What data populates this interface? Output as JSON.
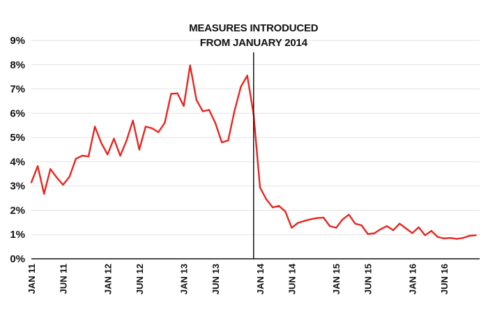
{
  "chart_data": {
    "type": "line",
    "title": "",
    "xlabel": "",
    "ylabel": "",
    "ylim": [
      0,
      9
    ],
    "y_ticks": [
      "0%",
      "1%",
      "2%",
      "3%",
      "4%",
      "5%",
      "6%",
      "7%",
      "8%",
      "9%"
    ],
    "x_ticks": [
      "JAN 11",
      "JUN 11",
      "JAN 12",
      "JUN 12",
      "JAN 13",
      "JUN 13",
      "JAN 14",
      "JUN 14",
      "JAN 15",
      "JUN 15",
      "JAN 16",
      "JUN 16"
    ],
    "grid": "horizontal",
    "series": [
      {
        "color": "#e8251f",
        "x": [
          "2011-01",
          "2011-02",
          "2011-03",
          "2011-04",
          "2011-05",
          "2011-06",
          "2011-07",
          "2011-08",
          "2011-09",
          "2011-10",
          "2011-11",
          "2011-12",
          "2012-01",
          "2012-02",
          "2012-03",
          "2012-04",
          "2012-05",
          "2012-06",
          "2012-07",
          "2012-08",
          "2012-09",
          "2012-10",
          "2012-11",
          "2012-12",
          "2013-01",
          "2013-02",
          "2013-03",
          "2013-04",
          "2013-05",
          "2013-06",
          "2013-07",
          "2013-08",
          "2013-09",
          "2013-10",
          "2013-11",
          "2013-12",
          "2014-01",
          "2014-02",
          "2014-03",
          "2014-04",
          "2014-05",
          "2014-06",
          "2014-07",
          "2014-08",
          "2014-09",
          "2014-10",
          "2014-11",
          "2014-12",
          "2015-01",
          "2015-02",
          "2015-03",
          "2015-04",
          "2015-05",
          "2015-06",
          "2015-07",
          "2015-08",
          "2015-09",
          "2015-10",
          "2015-11",
          "2015-12",
          "2016-01",
          "2016-02",
          "2016-03",
          "2016-04",
          "2016-05",
          "2016-06",
          "2016-07",
          "2016-08",
          "2016-09",
          "2016-10",
          "2016-11"
        ],
        "values": [
          3.15,
          3.82,
          2.68,
          3.7,
          3.35,
          3.05,
          3.38,
          4.12,
          4.25,
          4.22,
          5.45,
          4.78,
          4.3,
          4.95,
          4.25,
          4.88,
          5.7,
          4.5,
          5.45,
          5.38,
          5.22,
          5.6,
          6.8,
          6.82,
          6.3,
          7.97,
          6.55,
          6.08,
          6.14,
          5.58,
          4.8,
          4.88,
          6.1,
          7.1,
          7.55,
          5.95,
          2.95,
          2.45,
          2.12,
          2.18,
          1.95,
          1.28,
          1.48,
          1.56,
          1.63,
          1.68,
          1.7,
          1.35,
          1.28,
          1.62,
          1.82,
          1.45,
          1.38,
          1.02,
          1.05,
          1.22,
          1.35,
          1.18,
          1.45,
          1.25,
          1.06,
          1.3,
          0.97,
          1.15,
          0.9,
          0.84,
          0.86,
          0.82,
          0.86,
          0.95,
          0.97
        ]
      }
    ],
    "annotation": {
      "line1": "MEASURES INTRODUCED",
      "line2": "FROM JANUARY 2014",
      "at": "2013-12"
    }
  }
}
